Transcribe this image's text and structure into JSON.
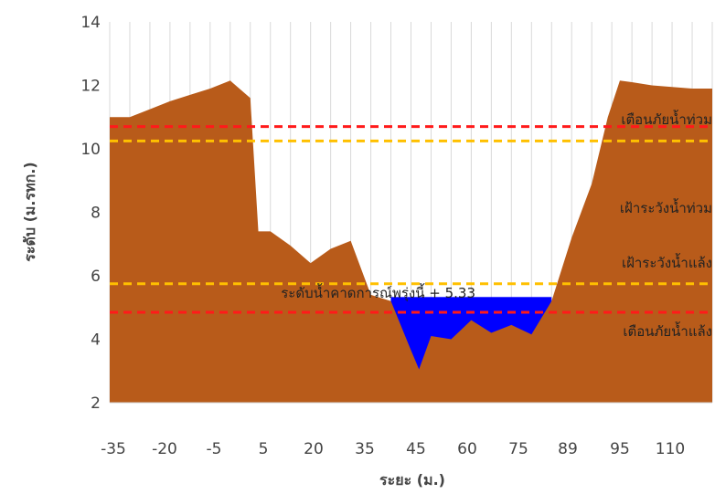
{
  "chart_data": {
    "type": "area",
    "xlabel": "ระยะ (ม.)",
    "ylabel": "ระดับ (ม.รทก.)",
    "ylim": [
      2,
      14
    ],
    "yticks": [
      2,
      4,
      6,
      8,
      10,
      12,
      14
    ],
    "x_tick_labels": [
      "-35",
      "-20",
      "-5",
      "5",
      "20",
      "35",
      "45",
      "60",
      "75",
      "89",
      "95",
      "110"
    ],
    "grid": "vertical",
    "colors": {
      "ground": "#B85B1A",
      "water": "#0000FF",
      "warning_line": "#FF1A1A",
      "watch_line": "#FFC000"
    },
    "ground_profile": {
      "x": [
        "-35",
        "-30",
        "-25",
        "-20",
        "-15",
        "-10",
        "-5",
        "0",
        "2",
        "5",
        "10",
        "15",
        "20",
        "25",
        "30",
        "35",
        "40",
        "42",
        "45",
        "50",
        "55",
        "60",
        "65",
        "70",
        "75",
        "80",
        "85",
        "89",
        "92",
        "95",
        "100",
        "105",
        "110",
        "115"
      ],
      "y": [
        11.0,
        11.0,
        11.25,
        11.5,
        11.7,
        11.9,
        12.15,
        11.6,
        7.4,
        7.4,
        6.95,
        6.4,
        6.85,
        7.1,
        5.4,
        5.2,
        3.65,
        3.05,
        4.1,
        4.0,
        4.6,
        4.2,
        4.45,
        4.15,
        5.2,
        7.2,
        8.9,
        11.0,
        12.15,
        12.1,
        12.0,
        11.95,
        11.9,
        11.9
      ]
    },
    "water_level": {
      "label": "ระดับน้ำคาดการณ์พรุ่งนี้ + 5.33",
      "value": 5.33
    },
    "reference_lines": [
      {
        "label": "เตือนภัยน้ำท่วม",
        "value": 10.7,
        "color": "#FF1A1A"
      },
      {
        "label": "เฝ้าระวังน้ำท่วม",
        "value": 10.25,
        "color": "#FFC000"
      },
      {
        "label": "เฝ้าระวังน้ำแล้ง",
        "value": 5.75,
        "color": "#FFC000"
      },
      {
        "label": "เตือนภัยน้ำแล้ง",
        "value": 4.85,
        "color": "#FF1A1A"
      }
    ]
  }
}
